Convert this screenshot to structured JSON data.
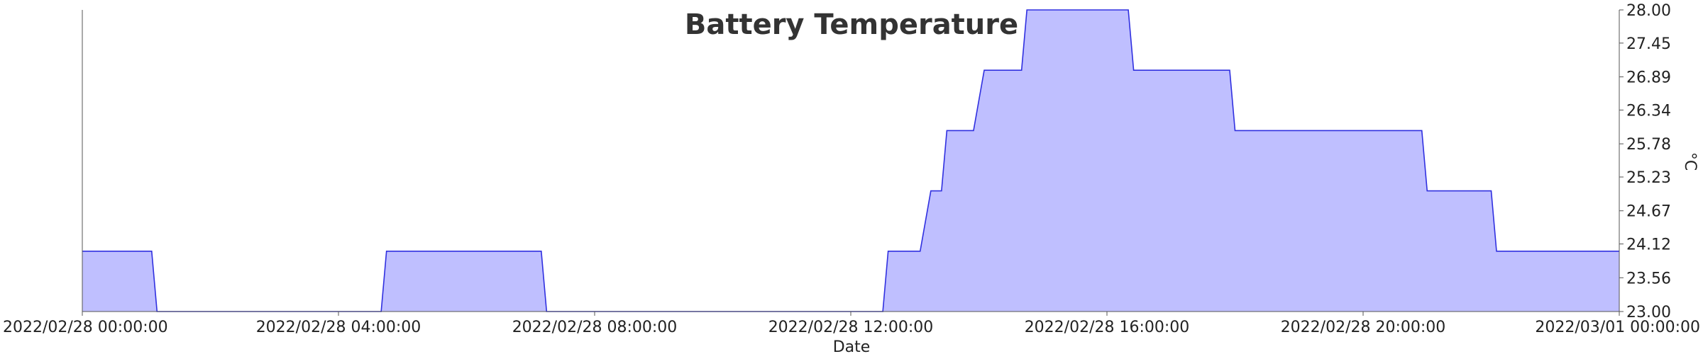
{
  "chart_data": {
    "type": "area",
    "title": "Battery Temperature",
    "xlabel": "Date",
    "ylabel": "°C",
    "x_ticks": [
      "2022/02/28 00:00:00",
      "2022/02/28 04:00:00",
      "2022/02/28 08:00:00",
      "2022/02/28 12:00:00",
      "2022/02/28 16:00:00",
      "2022/02/28 20:00:00",
      "2022/03/01 00:00:00"
    ],
    "y_ticks": [
      "23.00",
      "23.56",
      "24.12",
      "24.67",
      "25.23",
      "25.78",
      "26.34",
      "26.89",
      "27.45",
      "28.00"
    ],
    "xlim": [
      "2022/02/28 00:00:00",
      "2022/03/01 00:00:00"
    ],
    "ylim": [
      23,
      28
    ],
    "y_axis_side": "right",
    "grid": false,
    "legend": "none",
    "colors": {
      "fill": "#bfbfff",
      "line": "#3030e0"
    },
    "series": [
      {
        "x": [
          "2022/02/28 00:00:00",
          "2022/02/28 01:05:00",
          "2022/02/28 01:10:00",
          "2022/02/28 04:40:00",
          "2022/02/28 04:45:00",
          "2022/02/28 07:10:00",
          "2022/02/28 07:15:00",
          "2022/02/28 12:30:00",
          "2022/02/28 12:35:00",
          "2022/02/28 13:05:00",
          "2022/02/28 13:15:00",
          "2022/02/28 13:25:00",
          "2022/02/28 13:30:00",
          "2022/02/28 13:55:00",
          "2022/02/28 14:05:00",
          "2022/02/28 14:40:00",
          "2022/02/28 14:45:00",
          "2022/02/28 16:20:00",
          "2022/02/28 16:25:00",
          "2022/02/28 17:55:00",
          "2022/02/28 18:00:00",
          "2022/02/28 20:55:00",
          "2022/02/28 21:00:00",
          "2022/02/28 22:00:00",
          "2022/02/28 22:05:00",
          "2022/03/01 00:00:00"
        ],
        "values": [
          24,
          24,
          23,
          23,
          24,
          24,
          23,
          23,
          24,
          24,
          25,
          25,
          26,
          26,
          27,
          27,
          28,
          28,
          27,
          27,
          26,
          26,
          25,
          25,
          24,
          24
        ]
      }
    ]
  }
}
